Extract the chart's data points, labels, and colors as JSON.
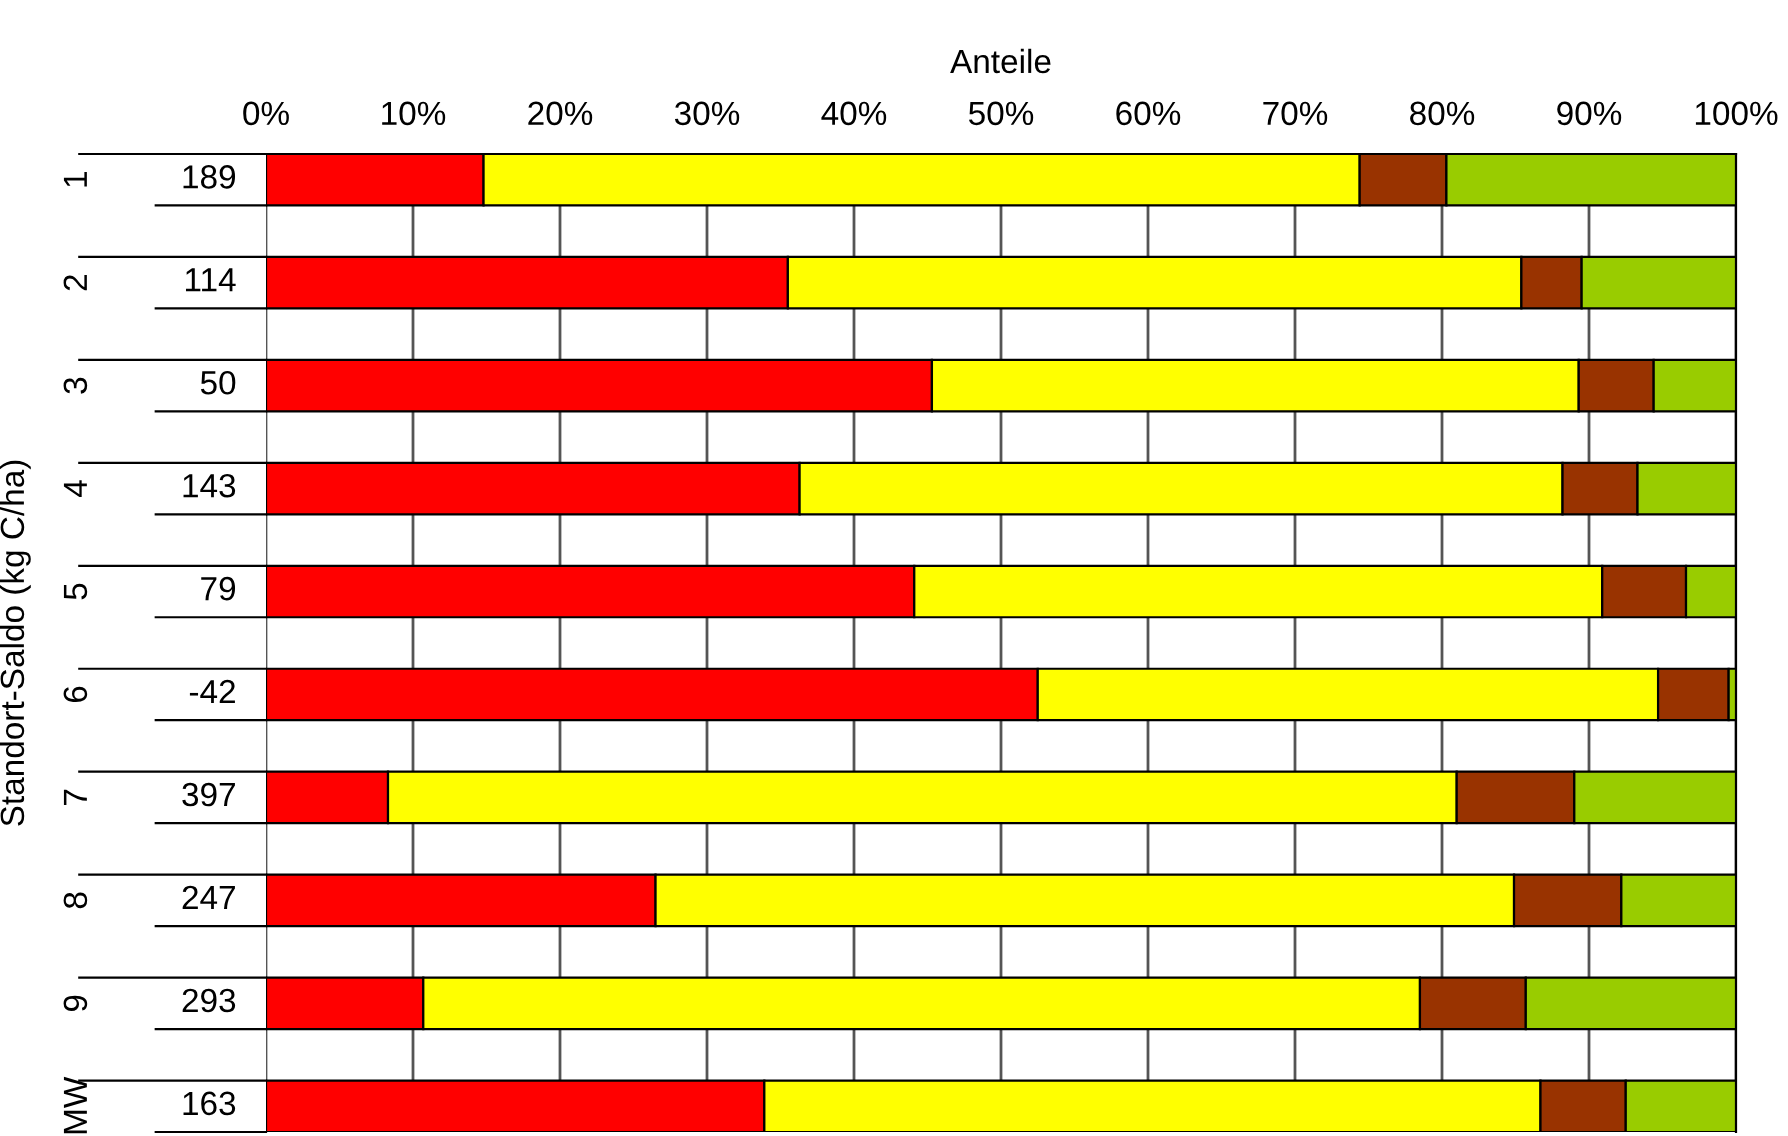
{
  "chart_data": {
    "type": "bar",
    "orientation": "horizontal",
    "stacked": true,
    "xlabel": "Anteile",
    "ylabel": "Standort-Saldo (kg C/ha)",
    "categories": [
      "1",
      "2",
      "3",
      "4",
      "5",
      "6",
      "7",
      "8",
      "9",
      "MW"
    ],
    "series": [
      {
        "color": "#ff0000",
        "values": [
          14.8,
          35.5,
          45.3,
          36.3,
          44.1,
          52.5,
          8.3,
          26.5,
          10.7,
          33.9
        ]
      },
      {
        "color": "#ffff00",
        "values": [
          59.6,
          49.9,
          44.0,
          51.9,
          46.8,
          42.2,
          72.7,
          58.4,
          67.8,
          52.8
        ]
      },
      {
        "color": "#993300",
        "values": [
          5.9,
          4.1,
          5.1,
          5.1,
          5.7,
          4.8,
          8.0,
          7.3,
          7.2,
          5.8
        ]
      },
      {
        "color": "#99cc00",
        "values": [
          19.7,
          10.5,
          5.6,
          6.7,
          3.4,
          0.5,
          11.0,
          7.8,
          14.3,
          7.5
        ]
      }
    ],
    "xlim": [
      0,
      100
    ],
    "xticks": [
      {
        "value": 0,
        "label": "0%"
      },
      {
        "value": 10,
        "label": "10%"
      },
      {
        "value": 20,
        "label": "20%"
      },
      {
        "value": 30,
        "label": "30%"
      },
      {
        "value": 40,
        "label": "40%"
      },
      {
        "value": 50,
        "label": "50%"
      },
      {
        "value": 60,
        "label": "60%"
      },
      {
        "value": 70,
        "label": "70%"
      },
      {
        "value": 80,
        "label": "80%"
      },
      {
        "value": 90,
        "label": "90%"
      },
      {
        "value": 100,
        "label": "100%"
      }
    ],
    "grid": "x",
    "annotations": [
      "189",
      "114",
      "50",
      "143",
      "79",
      "-42",
      "397",
      "247",
      "293",
      "163"
    ]
  }
}
